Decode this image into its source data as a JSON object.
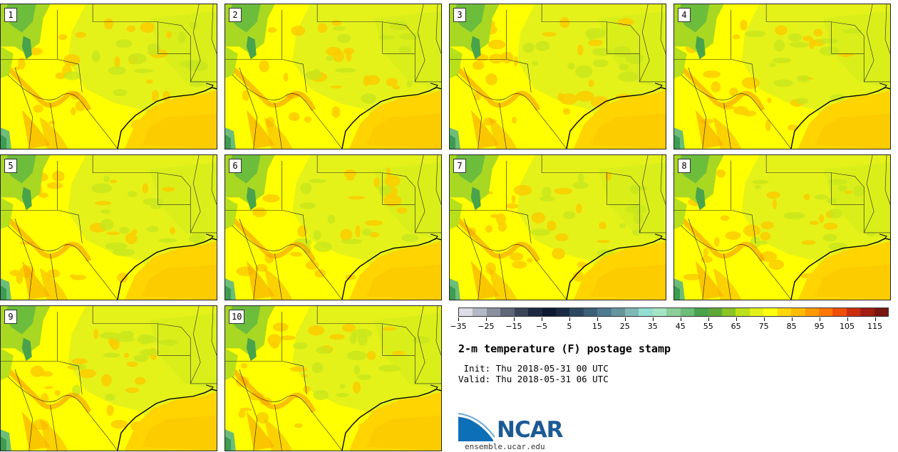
{
  "panels": [
    {
      "label": "1"
    },
    {
      "label": "2"
    },
    {
      "label": "3"
    },
    {
      "label": "4"
    },
    {
      "label": "5"
    },
    {
      "label": "6"
    },
    {
      "label": "7"
    },
    {
      "label": "8"
    },
    {
      "label": "9"
    },
    {
      "label": "10"
    }
  ],
  "colorbar": {
    "colors": [
      "#dcdde5",
      "#b4b8c5",
      "#8a8f9e",
      "#5f6677",
      "#3b4559",
      "#1d2a40",
      "#0d1a30",
      "#1a2c43",
      "#2c4860",
      "#3d5f78",
      "#4f7a90",
      "#66959f",
      "#7fb7b5",
      "#92ded1",
      "#a4e6c4",
      "#8ccf9a",
      "#6cbd78",
      "#4aa24c",
      "#5ea838",
      "#8bc425",
      "#bde01a",
      "#e3f11b",
      "#ffff0f",
      "#ffd60a",
      "#ffbb05",
      "#ff9a00",
      "#ff7700",
      "#ef4e09",
      "#cb2d11",
      "#a21d12",
      "#7a1610"
    ],
    "ticks": [
      "−35",
      "−25",
      "−15",
      "−5",
      "5",
      "15",
      "25",
      "35",
      "45",
      "55",
      "65",
      "75",
      "85",
      "95",
      "105",
      "115"
    ]
  },
  "title": "2-m temperature (F) postage stamp",
  "init_text": " Init: Thu 2018-05-31 00 UTC",
  "valid_text": "Valid: Thu 2018-05-31 06 UTC",
  "logo_text": "NCAR",
  "site": "ensemble.ucar.edu"
}
